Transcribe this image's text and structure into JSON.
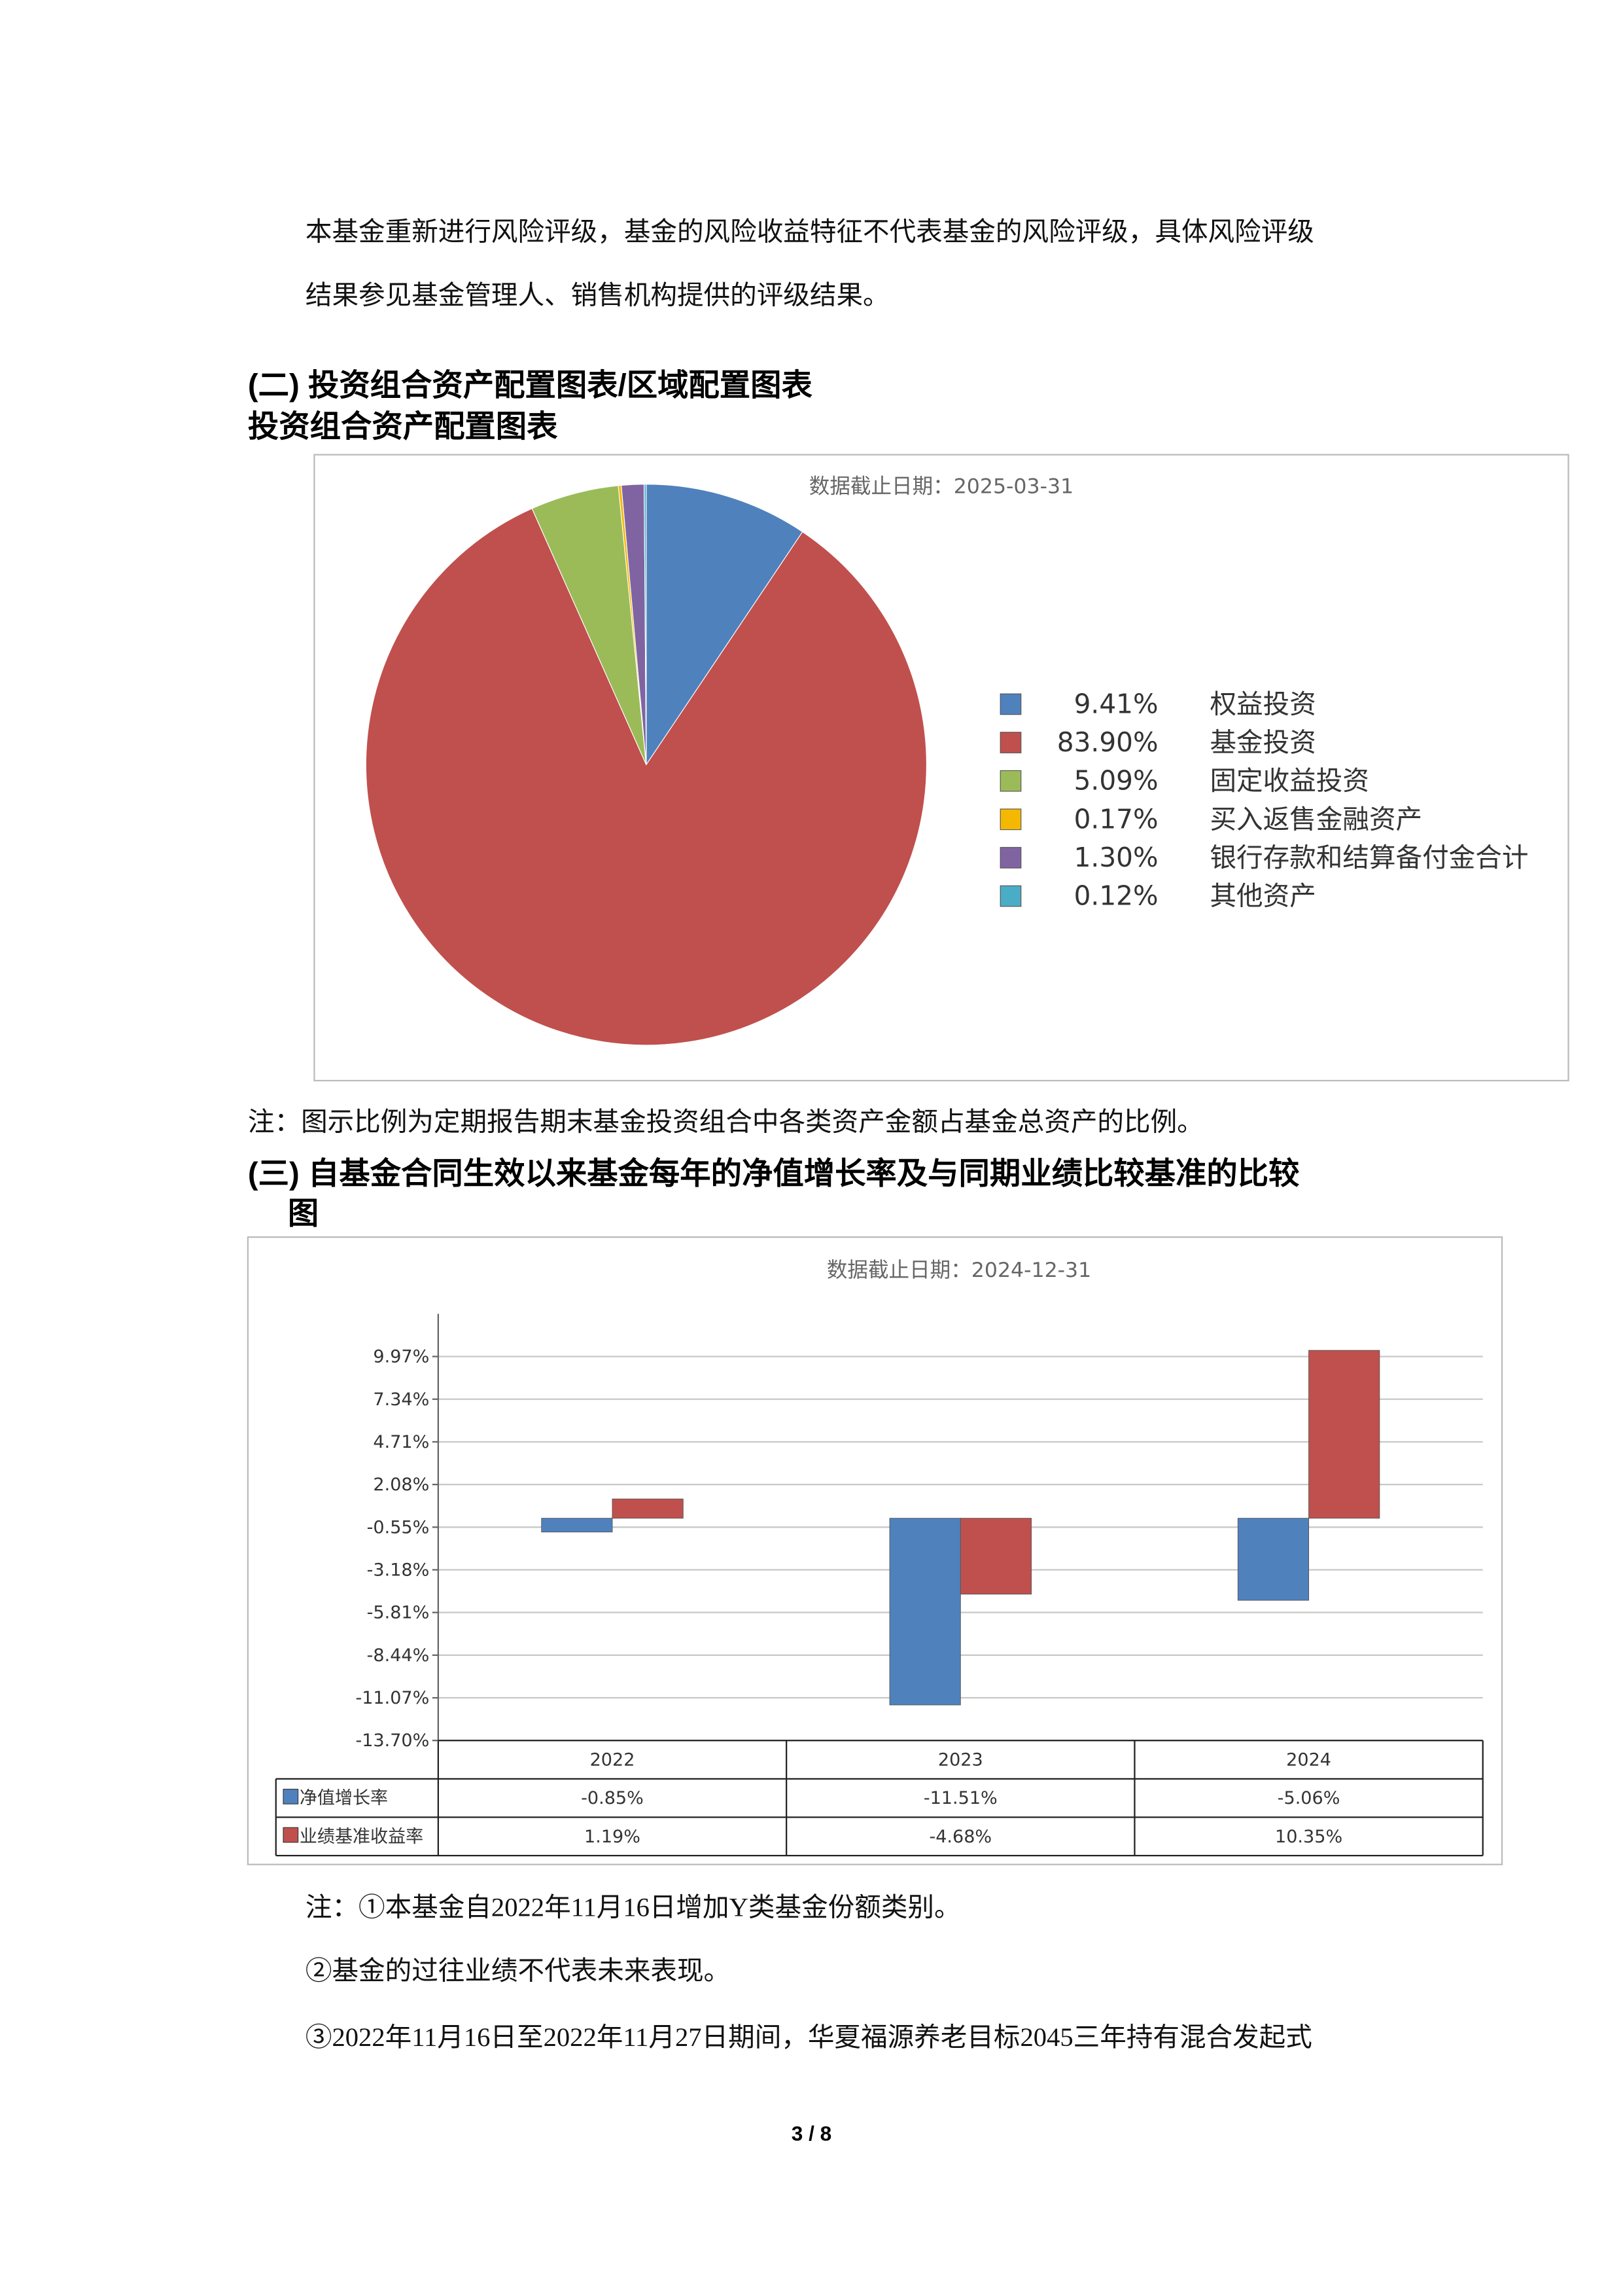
{
  "document": {
    "paragraphs": [
      "本基金重新进行风险评级，基金的风险收益特征不代表基金的风险评级，具体风险评级",
      "结果参见基金管理人、销售机构提供的评级结果。"
    ],
    "heading_2": "(二) 投资组合资产配置图表/区域配置图表",
    "heading_2_sub": "投资组合资产配置图表",
    "note_2": "注：图示比例为定期报告期末基金投资组合中各类资产金额占基金总资产的比例。",
    "heading_3": [
      "(三) 自基金合同生效以来基金每年的净值增长率及与同期业绩比较基准的比较",
      "图"
    ],
    "notes_3": [
      "注：①本基金自2022年11月16日增加Y类基金份额类别。",
      "②基金的过往业绩不代表未来表现。",
      "③2022年11月16日至2022年11月27日期间，华夏福源养老目标2045三年持有混合发起式"
    ],
    "page_number": "3 / 8"
  },
  "chart_data": [
    {
      "type": "pie",
      "subtitle": "数据截止日期：2025-03-31",
      "categories": [
        "权益投资",
        "基金投资",
        "固定收益投资",
        "买入返售金融资产",
        "银行存款和结算备付金合计",
        "其他资产"
      ],
      "values": [
        9.41,
        83.9,
        5.09,
        0.17,
        1.3,
        0.12
      ],
      "value_labels": [
        "9.41%",
        "83.90%",
        "5.09%",
        "0.17%",
        "1.30%",
        "0.12%"
      ],
      "colors": [
        "#4f81bd",
        "#c0504d",
        "#9bbb59",
        "#f5b800",
        "#8064a2",
        "#4bacc6"
      ],
      "legend": "right"
    },
    {
      "type": "bar",
      "subtitle": "数据截止日期：2024-12-31",
      "categories": [
        "2022",
        "2023",
        "2024"
      ],
      "series": [
        {
          "name": "净值增长率",
          "color": "#4f81bd",
          "values": [
            -0.85,
            -11.51,
            -5.06
          ],
          "value_labels": [
            "-0.85%",
            "-11.51%",
            "-5.06%"
          ]
        },
        {
          "name": "业绩基准收益率",
          "color": "#c0504d",
          "values": [
            1.19,
            -4.68,
            10.35
          ],
          "value_labels": [
            "1.19%",
            "-4.68%",
            "10.35%"
          ]
        }
      ],
      "ylim": [
        -13.7,
        12.6
      ],
      "yticks": [
        {
          "value": 9.97,
          "label": "9.97%"
        },
        {
          "value": 7.34,
          "label": "7.34%"
        },
        {
          "value": 4.71,
          "label": "4.71%"
        },
        {
          "value": 2.08,
          "label": "2.08%"
        },
        {
          "value": -0.55,
          "label": "-0.55%"
        },
        {
          "value": -3.18,
          "label": "-3.18%"
        },
        {
          "value": -5.81,
          "label": "-5.81%"
        },
        {
          "value": -8.44,
          "label": "-8.44%"
        },
        {
          "value": -11.07,
          "label": "-11.07%"
        },
        {
          "value": -13.7,
          "label": "-13.70%"
        }
      ],
      "grid": true,
      "data_table": true
    }
  ]
}
